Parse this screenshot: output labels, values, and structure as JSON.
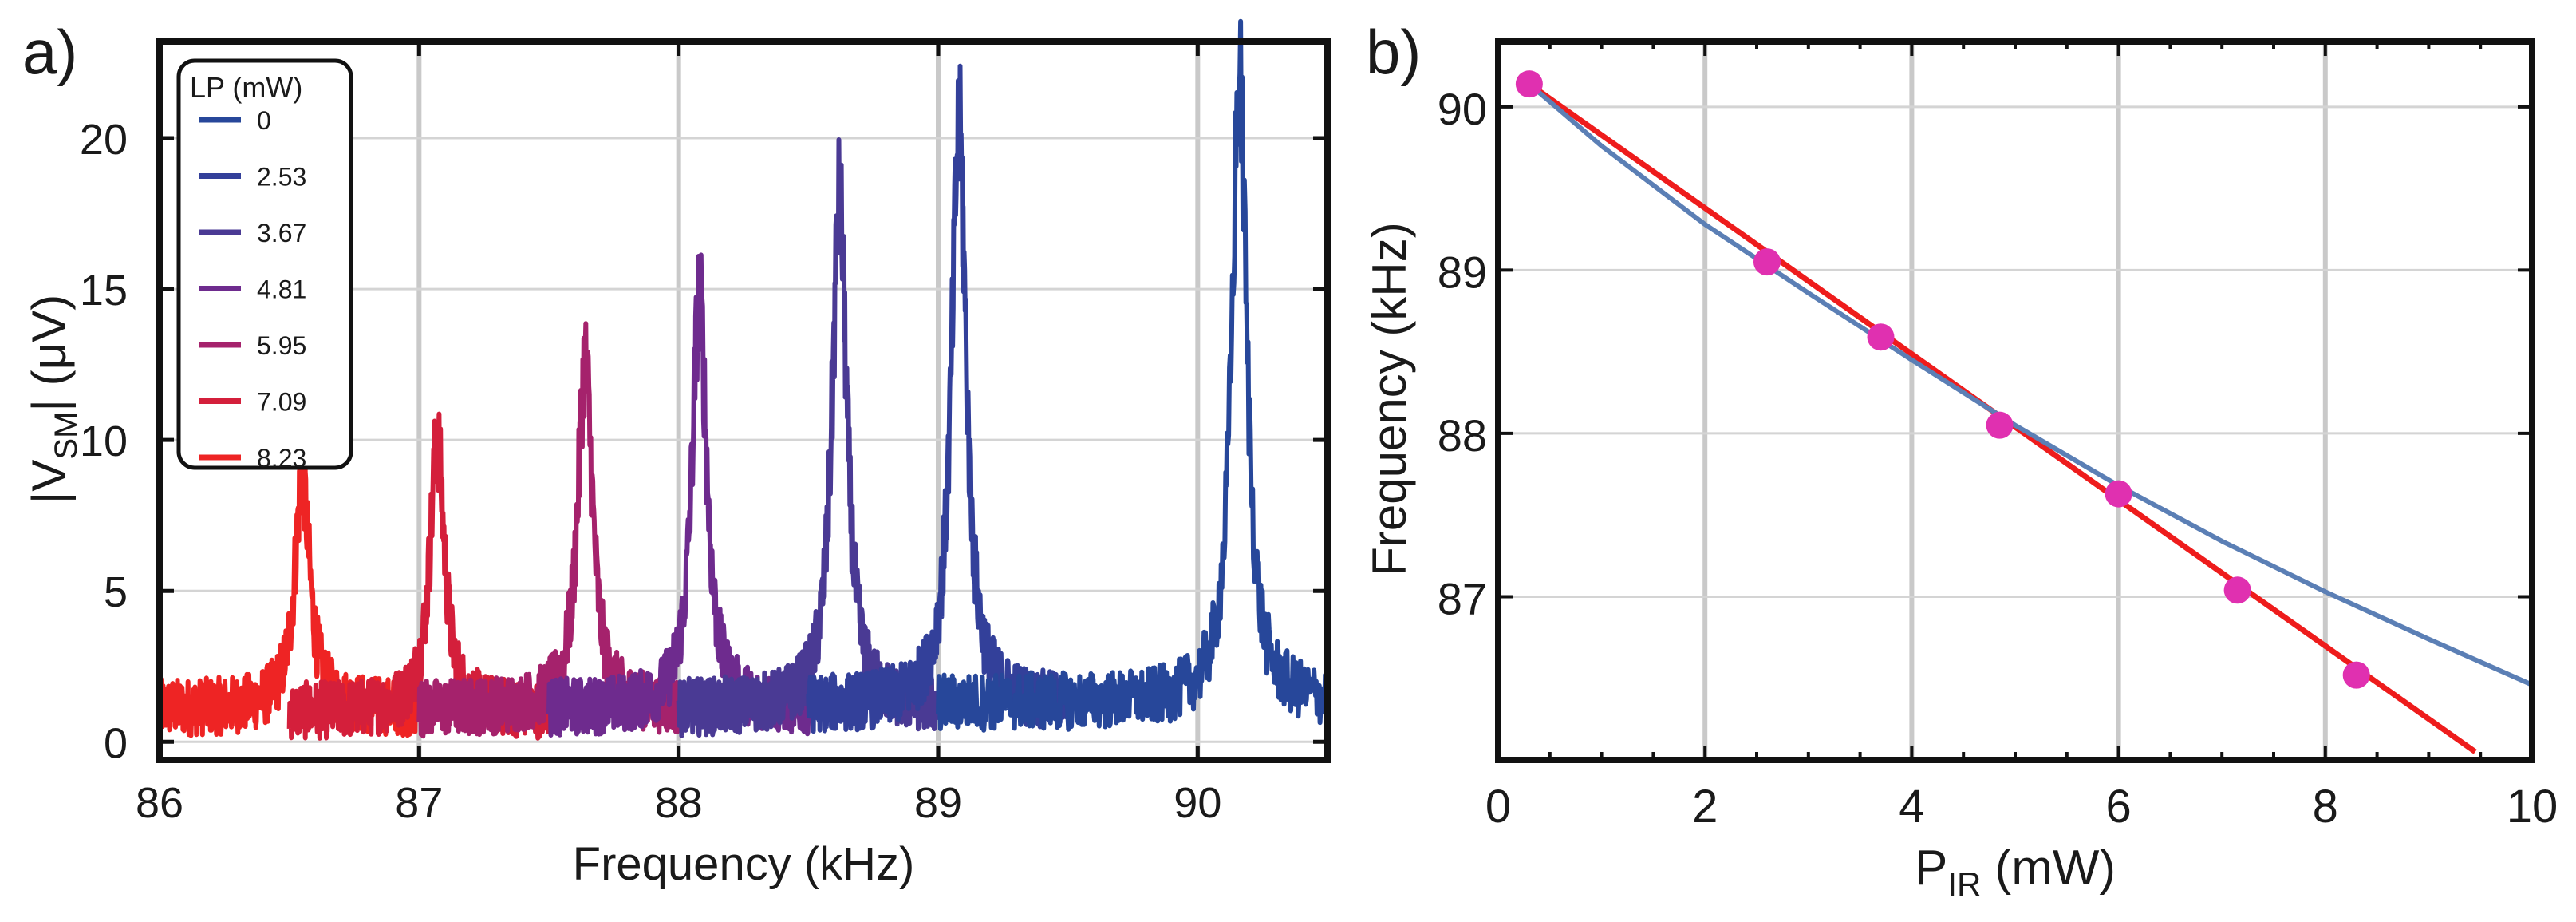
{
  "figure": {
    "panel_a_label": "a)",
    "panel_b_label": "b)"
  },
  "chart_data": [
    {
      "type": "line",
      "panel": "a)",
      "xlabel": "Frequency (kHz)",
      "ylabel": "|V_SM| (μV)",
      "ylabel_main": "|V",
      "ylabel_sub": "SM",
      "ylabel_rest": "| (μV)",
      "xlim": [
        86,
        90.5
      ],
      "ylim": [
        -0.6,
        23.2
      ],
      "xticks": [
        86,
        87,
        88,
        89,
        90
      ],
      "yticks": [
        0,
        5,
        10,
        15,
        20
      ],
      "grid": true,
      "legend": {
        "title": "LP (mW)",
        "placement": "top-left",
        "entries": [
          "0",
          "2.53",
          "3.67",
          "4.81",
          "5.95",
          "7.09",
          "8.23"
        ]
      },
      "series": [
        {
          "name": "0",
          "color": "#27479a",
          "peak_x": 90.16,
          "peak_y": 22.0,
          "x_range": [
            89.0,
            90.5
          ],
          "baseline": 1.3
        },
        {
          "name": "2.53",
          "color": "#33409a",
          "peak_x": 89.08,
          "peak_y": 20.3,
          "x_range": [
            88.5,
            89.5
          ],
          "baseline": 1.2
        },
        {
          "name": "3.67",
          "color": "#4a3a94",
          "peak_x": 88.62,
          "peak_y": 17.9,
          "x_range": [
            88.0,
            89.0
          ],
          "baseline": 1.1
        },
        {
          "name": "4.81",
          "color": "#6e2b8e",
          "peak_x": 88.08,
          "peak_y": 14.7,
          "x_range": [
            87.5,
            88.5
          ],
          "baseline": 1.1
        },
        {
          "name": "5.95",
          "color": "#a5226c",
          "peak_x": 87.64,
          "peak_y": 12.6,
          "x_range": [
            87.0,
            88.0
          ],
          "baseline": 1.1
        },
        {
          "name": "7.09",
          "color": "#d41f3b",
          "peak_x": 87.07,
          "peak_y": 9.9,
          "x_range": [
            86.5,
            87.5
          ],
          "baseline": 1.0
        },
        {
          "name": "8.23",
          "color": "#ee2424",
          "peak_x": 86.55,
          "peak_y": 8.8,
          "x_range": [
            86.0,
            87.0
          ],
          "baseline": 1.1
        }
      ]
    },
    {
      "type": "scatter",
      "panel": "b)",
      "xlabel": "P_IR (mW)",
      "xlabel_main": "P",
      "xlabel_sub": "IR",
      "xlabel_rest": " (mW)",
      "ylabel": "Frequency (kHz)",
      "xlim": [
        0,
        10
      ],
      "ylim": [
        86.0,
        90.4
      ],
      "xticks": [
        0,
        2,
        4,
        6,
        8,
        10
      ],
      "yticks": [
        87,
        88,
        89,
        90
      ],
      "grid": true,
      "points": {
        "color": "#e030b0",
        "x": [
          0.3,
          2.6,
          3.7,
          4.85,
          6.0,
          7.15,
          8.3
        ],
        "y": [
          90.14,
          89.05,
          88.59,
          88.05,
          87.63,
          87.04,
          86.52
        ]
      },
      "fits": [
        {
          "kind": "linear",
          "color": "#ee1c1c",
          "x": [
            0.3,
            9.45
          ],
          "y": [
            90.14,
            86.05
          ]
        },
        {
          "kind": "curve",
          "color": "#5b7fb5",
          "x": [
            0.3,
            1,
            2,
            3,
            4,
            5,
            6,
            7,
            8,
            9,
            10
          ],
          "y": [
            90.14,
            89.76,
            89.28,
            88.86,
            88.45,
            88.05,
            87.68,
            87.34,
            87.03,
            86.74,
            86.46
          ]
        }
      ]
    }
  ]
}
